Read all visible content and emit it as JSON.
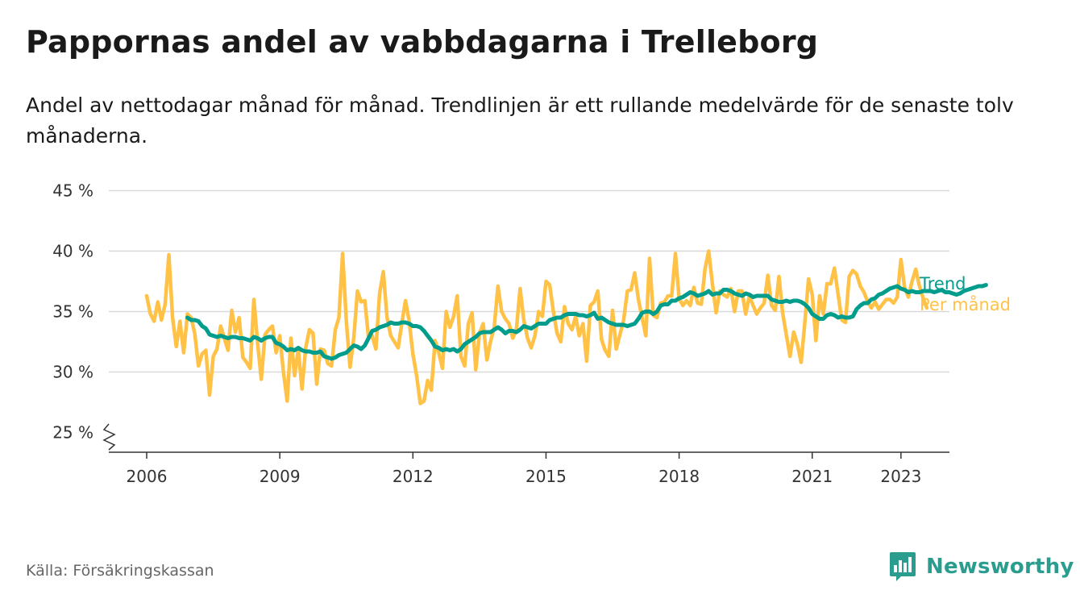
{
  "header": {
    "title": "Pappornas andel av vabbdagarna i Trelleborg",
    "subtitle": "Andel av nettodagar månad för månad. Trendlinjen är ett rullande medelvärde för de senaste tolv månaderna."
  },
  "footer": {
    "source": "Källa: Försäkringskassan",
    "brand": "Newsworthy",
    "brand_icon": "bar-chart-icon"
  },
  "colors": {
    "trend": "#009c8c",
    "monthly": "#ffc247",
    "brand": "#2a9d8f",
    "grid": "#d9d9d9",
    "axis": "#333333"
  },
  "chart_data": {
    "type": "line",
    "title": "Pappornas andel av vabbdagarna i Trelleborg",
    "xlabel": "",
    "ylabel": "",
    "x_start": "2006-01",
    "x_end": "2023-05",
    "xlim": [
      2005.1,
      2024.1
    ],
    "ylim": [
      24,
      45
    ],
    "y_ticks": [
      25,
      30,
      35,
      40,
      45
    ],
    "y_tick_labels": [
      "25 %",
      "30 %",
      "35 %",
      "40 %",
      "45 %"
    ],
    "x_ticks": [
      2006,
      2009,
      2012,
      2015,
      2018,
      2021,
      2023
    ],
    "x_tick_labels": [
      "2006",
      "2009",
      "2012",
      "2015",
      "2018",
      "2021",
      "2023"
    ],
    "grid": true,
    "axis_break": true,
    "series": [
      {
        "name": "Per månad",
        "values": [
          36.3,
          34.8,
          34.2,
          35.8,
          34.3,
          35.6,
          39.7,
          34.5,
          32.1,
          34.2,
          31.6,
          34.8,
          34.5,
          33.2,
          30.5,
          31.5,
          31.8,
          28.1,
          31.3,
          31.9,
          33.8,
          32.8,
          31.8,
          35.1,
          33.3,
          34.5,
          31.2,
          30.8,
          30.3,
          36.0,
          32.4,
          29.4,
          33.1,
          33.5,
          33.8,
          31.6,
          33.0,
          30.0,
          27.6,
          32.8,
          29.7,
          31.9,
          28.6,
          32.0,
          33.5,
          33.2,
          29.0,
          31.9,
          31.8,
          30.7,
          30.5,
          33.5,
          34.5,
          39.8,
          34.2,
          30.4,
          32.8,
          36.7,
          35.8,
          35.9,
          32.8,
          33.0,
          31.9,
          36.5,
          38.3,
          34.5,
          33.0,
          32.5,
          32.0,
          34.0,
          35.9,
          34.2,
          31.5,
          29.7,
          27.4,
          27.6,
          29.3,
          28.5,
          32.6,
          31.6,
          30.3,
          35.0,
          33.7,
          34.6,
          36.3,
          31.3,
          30.5,
          34.0,
          34.9,
          30.2,
          33.2,
          34.0,
          31.0,
          32.5,
          33.7,
          37.1,
          35.0,
          34.4,
          34.0,
          32.8,
          33.5,
          36.9,
          34.3,
          32.8,
          32.0,
          33.0,
          35.0,
          34.6,
          37.5,
          37.2,
          35.0,
          33.2,
          32.5,
          35.4,
          34.0,
          33.5,
          34.6,
          33.0,
          34.0,
          30.9,
          35.5,
          35.8,
          36.7,
          32.7,
          31.8,
          31.3,
          35.1,
          31.9,
          33.1,
          34.3,
          36.7,
          36.8,
          38.2,
          36.0,
          34.5,
          33.0,
          39.4,
          34.7,
          34.5,
          35.7,
          35.8,
          36.3,
          36.3,
          39.8,
          36.1,
          35.5,
          35.9,
          35.5,
          37.0,
          35.7,
          35.6,
          38.5,
          40.0,
          37.3,
          34.9,
          36.7,
          36.4,
          36.2,
          36.9,
          35.0,
          36.7,
          36.7,
          34.8,
          36.3,
          35.5,
          34.8,
          35.3,
          35.7,
          38.0,
          35.5,
          35.1,
          37.9,
          34.9,
          33.1,
          31.3,
          33.3,
          32.3,
          30.8,
          34.1,
          37.7,
          36.4,
          32.6,
          36.3,
          34.8,
          37.3,
          37.3,
          38.6,
          36.4,
          34.3,
          34.1,
          37.9,
          38.4,
          38.1,
          37.1,
          36.6,
          35.8,
          35.3,
          35.8,
          35.2,
          35.6,
          36.0,
          36.0,
          35.7,
          36.2,
          39.3,
          37.0,
          36.2,
          37.5,
          38.5,
          37.1,
          36.1,
          35.3
        ]
      },
      {
        "name": "Trend",
        "values": [
          null,
          null,
          null,
          null,
          null,
          null,
          null,
          null,
          null,
          null,
          null,
          34.5,
          34.3,
          34.3,
          34.2,
          33.8,
          33.6,
          33.1,
          33.0,
          32.9,
          33.0,
          32.9,
          32.8,
          32.9,
          32.9,
          32.8,
          32.8,
          32.7,
          32.6,
          32.9,
          32.8,
          32.6,
          32.8,
          32.9,
          32.9,
          32.4,
          32.3,
          32.1,
          31.8,
          31.9,
          31.8,
          32.0,
          31.8,
          31.7,
          31.7,
          31.6,
          31.6,
          31.7,
          31.3,
          31.2,
          31.1,
          31.2,
          31.4,
          31.5,
          31.6,
          31.9,
          32.2,
          32.1,
          31.9,
          32.2,
          32.8,
          33.4,
          33.5,
          33.7,
          33.8,
          33.9,
          34.1,
          34.0,
          34.0,
          34.1,
          34.1,
          34.0,
          33.8,
          33.8,
          33.7,
          33.4,
          33.0,
          32.6,
          32.1,
          32.0,
          31.8,
          31.9,
          31.8,
          31.9,
          31.7,
          31.9,
          32.3,
          32.5,
          32.7,
          32.9,
          33.2,
          33.3,
          33.3,
          33.3,
          33.5,
          33.7,
          33.5,
          33.2,
          33.4,
          33.4,
          33.3,
          33.5,
          33.8,
          33.7,
          33.6,
          33.8,
          34.0,
          34.0,
          34.0,
          34.3,
          34.4,
          34.5,
          34.5,
          34.7,
          34.8,
          34.8,
          34.8,
          34.7,
          34.7,
          34.6,
          34.7,
          34.9,
          34.4,
          34.5,
          34.3,
          34.1,
          34.0,
          33.9,
          33.9,
          33.9,
          33.8,
          33.9,
          34.0,
          34.4,
          34.9,
          35.0,
          35.0,
          34.8,
          35.0,
          35.5,
          35.6,
          35.6,
          35.9,
          35.9,
          36.1,
          36.2,
          36.4,
          36.6,
          36.5,
          36.3,
          36.4,
          36.5,
          36.7,
          36.4,
          36.5,
          36.5,
          36.8,
          36.8,
          36.7,
          36.5,
          36.4,
          36.3,
          36.5,
          36.4,
          36.2,
          36.3,
          36.3,
          36.3,
          36.3,
          36.0,
          35.9,
          35.8,
          35.8,
          35.9,
          35.8,
          35.9,
          35.9,
          35.8,
          35.6,
          35.3,
          34.8,
          34.6,
          34.4,
          34.4,
          34.7,
          34.8,
          34.7,
          34.5,
          34.6,
          34.5,
          34.5,
          34.6,
          35.2,
          35.5,
          35.7,
          35.7,
          36.0,
          36.1,
          36.4,
          36.5,
          36.7,
          36.9,
          37.0,
          37.1,
          36.9,
          36.8,
          36.6,
          36.7,
          36.6,
          36.6,
          36.7,
          36.7,
          36.7,
          36.6,
          36.7,
          36.8,
          36.6,
          36.6,
          36.5,
          36.4,
          36.5,
          36.7,
          36.8,
          36.9,
          37.0,
          37.1,
          37.1,
          37.2
        ]
      }
    ]
  }
}
